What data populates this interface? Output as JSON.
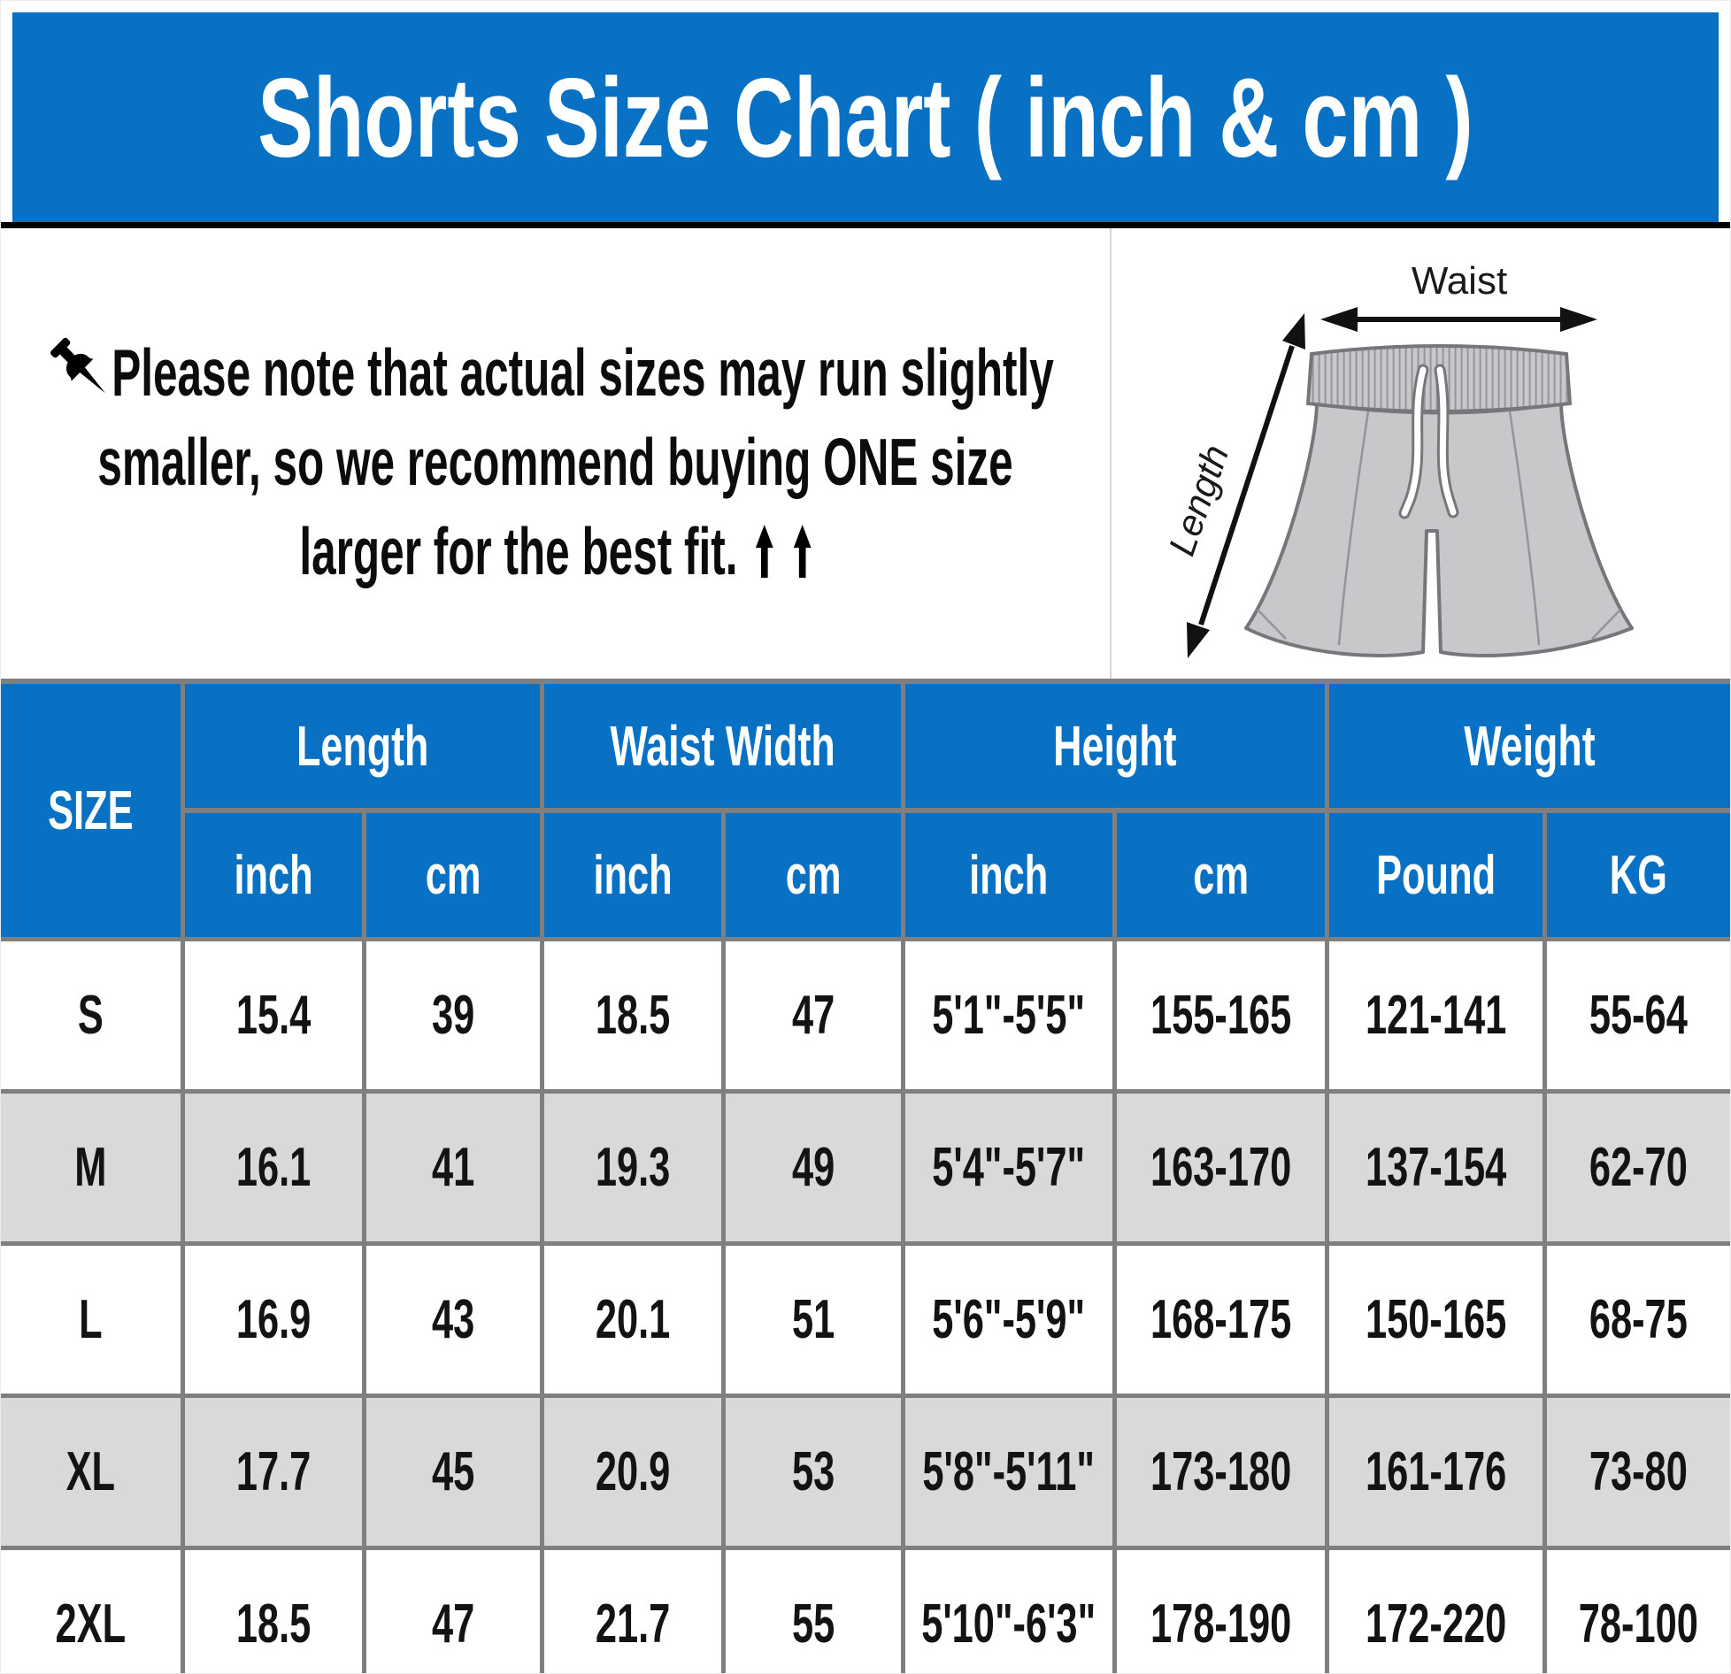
{
  "banner": {
    "title": "Shorts Size Chart ( inch & cm )"
  },
  "note": {
    "pin_icon": "pushpin",
    "line1": "Please note that actual sizes may run slightly",
    "line2": "smaller, so we recommend buying ONE size",
    "line3": "larger for the best fit.",
    "arrows_glyph": "⬆ ⬆"
  },
  "diagram": {
    "waist_label": "Waist",
    "length_label": "Length"
  },
  "table": {
    "size_header": "SIZE",
    "groups": [
      {
        "label": "Length"
      },
      {
        "label": "Waist Width"
      },
      {
        "label": "Height"
      },
      {
        "label": "Weight"
      }
    ],
    "subheaders": [
      "inch",
      "cm",
      "inch",
      "cm",
      "inch",
      "cm",
      "Pound",
      "KG"
    ],
    "rows": [
      {
        "size": "S",
        "cells": [
          "15.4",
          "39",
          "18.5",
          "47",
          "5'1\"-5'5\"",
          "155-165",
          "121-141",
          "55-64"
        ]
      },
      {
        "size": "M",
        "cells": [
          "16.1",
          "41",
          "19.3",
          "49",
          "5'4\"-5'7\"",
          "163-170",
          "137-154",
          "62-70"
        ]
      },
      {
        "size": "L",
        "cells": [
          "16.9",
          "43",
          "20.1",
          "51",
          "5'6\"-5'9\"",
          "168-175",
          "150-165",
          "68-75"
        ]
      },
      {
        "size": "XL",
        "cells": [
          "17.7",
          "45",
          "20.9",
          "53",
          "5'8\"-5'11\"",
          "173-180",
          "161-176",
          "73-80"
        ]
      },
      {
        "size": "2XL",
        "cells": [
          "18.5",
          "47",
          "21.7",
          "55",
          "5'10\"-6'3\"",
          "178-190",
          "172-220",
          "78-100"
        ]
      }
    ]
  },
  "colors": {
    "accent_blue": "#0871c3",
    "row_alt_gray": "#d9d9d9",
    "border_gray": "#7f7f7f",
    "banner_divider_black": "#000000",
    "shorts_fill": "#c7c8ca",
    "shorts_outline": "#76777a"
  }
}
